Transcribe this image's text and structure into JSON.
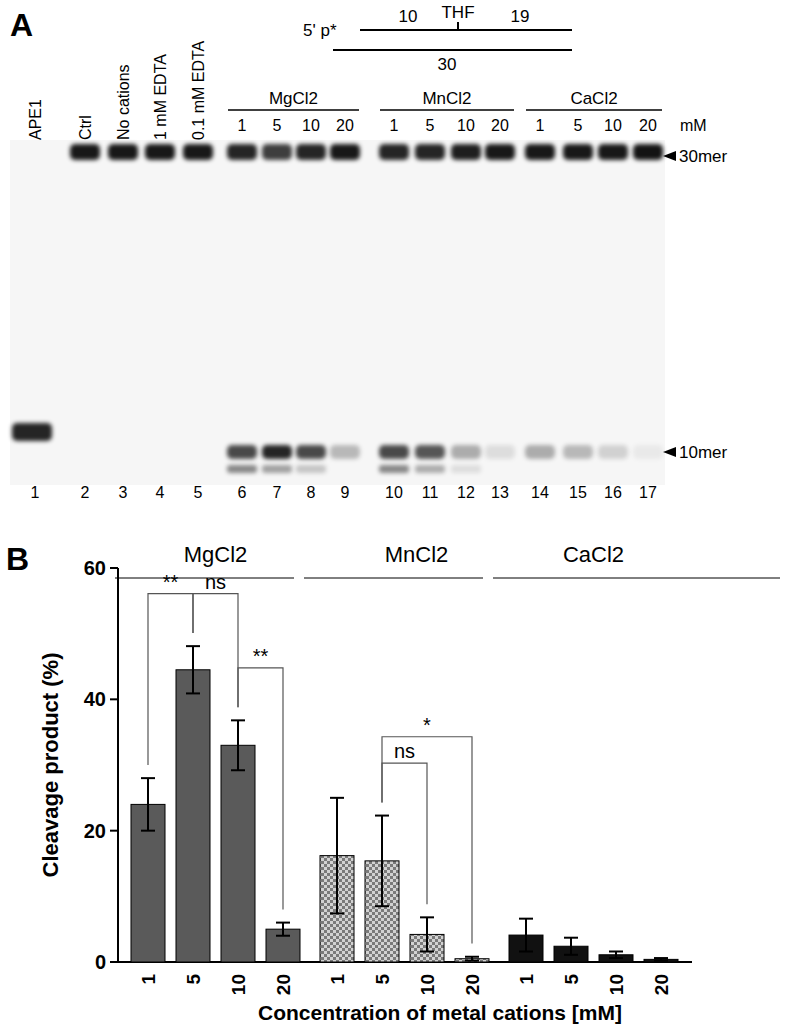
{
  "gel": {
    "panel_label": "A",
    "substrate": {
      "five_prime": "5' p*",
      "top_left": "10",
      "lesion": "THF",
      "top_right": "19",
      "bottom": "30"
    },
    "unit": "mM",
    "band_labels": {
      "substrate": "30mer",
      "product": "10mer"
    },
    "groups": [
      "MgCl2",
      "MnCl2",
      "CaCl2"
    ],
    "lanes": [
      {
        "number": 1,
        "label": "APE1",
        "substrate": 0,
        "product": 0.85,
        "fast_product": 0
      },
      {
        "number": 2,
        "label": "Ctrl",
        "substrate": 0.9,
        "product": 0,
        "fast_product": 0
      },
      {
        "number": 3,
        "label": "No cations",
        "substrate": 0.9,
        "product": 0,
        "fast_product": 0
      },
      {
        "number": 4,
        "label": "1 mM EDTA",
        "substrate": 0.9,
        "product": 0,
        "fast_product": 0
      },
      {
        "number": 5,
        "label": "0.1 mM EDTA",
        "substrate": 0.9,
        "product": 0,
        "fast_product": 0
      },
      {
        "number": 6,
        "label": "1",
        "group": "MgCl2",
        "substrate": 0.85,
        "product": 0.7,
        "fast_product": 0.45
      },
      {
        "number": 7,
        "label": "5",
        "group": "MgCl2",
        "substrate": 0.75,
        "product": 0.85,
        "fast_product": 0.35
      },
      {
        "number": 8,
        "label": "10",
        "group": "MgCl2",
        "substrate": 0.85,
        "product": 0.7,
        "fast_product": 0.2
      },
      {
        "number": 9,
        "label": "20",
        "group": "MgCl2",
        "substrate": 0.9,
        "product": 0.25,
        "fast_product": 0
      },
      {
        "number": 10,
        "label": "1",
        "group": "MnCl2",
        "substrate": 0.85,
        "product": 0.7,
        "fast_product": 0.45
      },
      {
        "number": 11,
        "label": "5",
        "group": "MnCl2",
        "substrate": 0.85,
        "product": 0.65,
        "fast_product": 0.3
      },
      {
        "number": 12,
        "label": "10",
        "group": "MnCl2",
        "substrate": 0.88,
        "product": 0.3,
        "fast_product": 0.1
      },
      {
        "number": 13,
        "label": "20",
        "group": "MnCl2",
        "substrate": 0.9,
        "product": 0.1,
        "fast_product": 0
      },
      {
        "number": 14,
        "label": "1",
        "group": "CaCl2",
        "substrate": 0.9,
        "product": 0.3,
        "fast_product": 0
      },
      {
        "number": 15,
        "label": "5",
        "group": "CaCl2",
        "substrate": 0.9,
        "product": 0.25,
        "fast_product": 0
      },
      {
        "number": 16,
        "label": "10",
        "group": "CaCl2",
        "substrate": 0.9,
        "product": 0.15,
        "fast_product": 0
      },
      {
        "number": 17,
        "label": "20",
        "group": "CaCl2",
        "substrate": 0.92,
        "product": 0.05,
        "fast_product": 0
      }
    ]
  },
  "chart_data": {
    "type": "bar",
    "panel_label": "B",
    "y_label": "Cleavage product (%)",
    "x_label": "Concentration of metal cations [mM]",
    "categories": [
      "1",
      "5",
      "10",
      "20"
    ],
    "series": [
      {
        "name": "MgCl2",
        "color": "#5a5a5a",
        "values": [
          24,
          44.5,
          33,
          5
        ],
        "errors": [
          4,
          3.6,
          3.8,
          1
        ]
      },
      {
        "name": "MnCl2",
        "color": "#b4b4b4",
        "values": [
          16.2,
          15.4,
          4.2,
          0.5
        ],
        "errors": [
          8.8,
          6.9,
          2.6,
          0.3
        ]
      },
      {
        "name": "CaCl2",
        "color": "#111111",
        "values": [
          4.1,
          2.4,
          1.1,
          0.4
        ],
        "errors": [
          2.5,
          1.3,
          0.5,
          0.2
        ]
      }
    ],
    "ylim": [
      0,
      60
    ],
    "yticks": [
      0,
      20,
      40,
      60
    ],
    "grid": false,
    "annotations": [
      {
        "series": "MgCl2",
        "from": "1",
        "to": "5",
        "label": "**"
      },
      {
        "series": "MgCl2",
        "from": "5",
        "to": "10",
        "label": "ns"
      },
      {
        "series": "MgCl2",
        "from": "10",
        "to": "20",
        "label": "**"
      },
      {
        "series": "MnCl2",
        "from": "5",
        "to": "10",
        "label": "ns"
      },
      {
        "series": "MnCl2",
        "from": "5",
        "to": "20",
        "label": "*"
      }
    ]
  }
}
